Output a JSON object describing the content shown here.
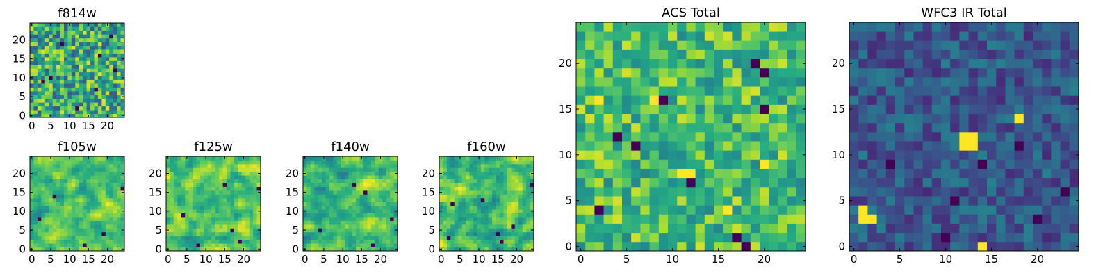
{
  "figure": {
    "background": "#ffffff"
  },
  "chart_data": [
    {
      "id": "f814w",
      "type": "heatmap",
      "title": "f814w",
      "grid_size": 25,
      "xlim": [
        0,
        24
      ],
      "ylim": [
        0,
        24
      ],
      "xticks": [
        0,
        5,
        10,
        15,
        20
      ],
      "yticks": [
        0,
        5,
        10,
        15,
        20
      ],
      "colormap": "viridis",
      "seed": 814,
      "bias": 0.62,
      "spread": 0.34,
      "smooth": 0,
      "dark_cells": [
        [
          5,
          10
        ],
        [
          21,
          21
        ],
        [
          18,
          16
        ],
        [
          3,
          9
        ],
        [
          12,
          2
        ],
        [
          8,
          19
        ],
        [
          17,
          7
        ],
        [
          22,
          12
        ]
      ],
      "bright_cells": [],
      "vmin": 0,
      "vmax": 1
    },
    {
      "id": "f105w",
      "type": "heatmap",
      "title": "f105w",
      "grid_size": 25,
      "xlim": [
        0,
        24
      ],
      "ylim": [
        0,
        24
      ],
      "xticks": [
        0,
        5,
        10,
        15,
        20
      ],
      "yticks": [
        0,
        5,
        10,
        15,
        20
      ],
      "colormap": "viridis",
      "seed": 105,
      "bias": 0.72,
      "spread": 0.22,
      "smooth": 1,
      "dark_cells": [
        [
          19,
          4
        ],
        [
          24,
          16
        ],
        [
          6,
          14
        ],
        [
          14,
          1
        ],
        [
          2,
          8
        ]
      ],
      "bright_cells": [],
      "vmin": 0,
      "vmax": 1
    },
    {
      "id": "f125w",
      "type": "heatmap",
      "title": "f125w",
      "grid_size": 25,
      "xlim": [
        0,
        24
      ],
      "ylim": [
        0,
        24
      ],
      "xticks": [
        0,
        5,
        10,
        15,
        20
      ],
      "yticks": [
        0,
        5,
        10,
        15,
        20
      ],
      "colormap": "viridis",
      "seed": 125,
      "bias": 0.74,
      "spread": 0.22,
      "smooth": 1,
      "dark_cells": [
        [
          15,
          17
        ],
        [
          24,
          16
        ],
        [
          17,
          5
        ],
        [
          19,
          2
        ],
        [
          4,
          9
        ],
        [
          8,
          1
        ]
      ],
      "bright_cells": [],
      "vmin": 0,
      "vmax": 1
    },
    {
      "id": "f140w",
      "type": "heatmap",
      "title": "f140w",
      "grid_size": 25,
      "xlim": [
        0,
        24
      ],
      "ylim": [
        0,
        24
      ],
      "xticks": [
        0,
        5,
        10,
        15,
        20
      ],
      "yticks": [
        0,
        5,
        10,
        15,
        20
      ],
      "colormap": "viridis",
      "seed": 140,
      "bias": 0.7,
      "spread": 0.22,
      "smooth": 1,
      "dark_cells": [
        [
          13,
          17
        ],
        [
          16,
          15
        ],
        [
          23,
          8
        ],
        [
          18,
          1
        ],
        [
          4,
          5
        ]
      ],
      "bright_cells": [],
      "vmin": 0,
      "vmax": 1
    },
    {
      "id": "f160w",
      "type": "heatmap",
      "title": "f160w",
      "grid_size": 25,
      "xlim": [
        0,
        24
      ],
      "ylim": [
        0,
        24
      ],
      "xticks": [
        0,
        5,
        10,
        15,
        20
      ],
      "yticks": [
        0,
        5,
        10,
        15,
        20
      ],
      "colormap": "viridis",
      "seed": 160,
      "bias": 0.7,
      "spread": 0.24,
      "smooth": 1,
      "dark_cells": [
        [
          11,
          13
        ],
        [
          3,
          12
        ],
        [
          24,
          17
        ],
        [
          15,
          4
        ],
        [
          16,
          2
        ],
        [
          19,
          6
        ],
        [
          2,
          3
        ]
      ],
      "bright_cells": [],
      "vmin": 0,
      "vmax": 1
    },
    {
      "id": "acs_total",
      "type": "heatmap",
      "title": "ACS Total",
      "grid_size": 25,
      "xlim": [
        0,
        24
      ],
      "ylim": [
        0,
        24
      ],
      "xticks": [
        0,
        5,
        10,
        15,
        20
      ],
      "yticks": [
        0,
        5,
        10,
        15,
        20
      ],
      "colormap": "viridis",
      "seed": 2011,
      "bias": 0.7,
      "spread": 0.24,
      "smooth": 0,
      "dark_cells": [
        [
          4,
          12
        ],
        [
          6,
          11
        ],
        [
          19,
          20
        ],
        [
          20,
          19
        ],
        [
          20,
          15
        ],
        [
          18,
          0
        ],
        [
          2,
          4
        ],
        [
          9,
          16
        ],
        [
          17,
          1
        ],
        [
          12,
          7
        ]
      ],
      "bright_cells": [
        [
          8,
          16
        ],
        [
          2,
          16
        ],
        [
          11,
          8
        ],
        [
          12,
          8
        ],
        [
          20,
          9
        ],
        [
          16,
          4
        ]
      ],
      "vmin": 0,
      "vmax": 1
    },
    {
      "id": "wfc3_ir_total",
      "type": "heatmap",
      "title": "WFC3 IR Total",
      "grid_size": 25,
      "xlim": [
        0,
        24
      ],
      "ylim": [
        0,
        24
      ],
      "xticks": [
        0,
        5,
        10,
        15,
        20
      ],
      "yticks": [
        0,
        5,
        10,
        15,
        20
      ],
      "colormap": "viridis",
      "seed": 3020,
      "bias": 0.28,
      "spread": 0.16,
      "smooth": 0,
      "dark_cells": [
        [
          11,
          5
        ],
        [
          4,
          9
        ],
        [
          14,
          9
        ],
        [
          18,
          11
        ],
        [
          20,
          3
        ],
        [
          23,
          6
        ],
        [
          10,
          1
        ]
      ],
      "bright_cells": [
        [
          12,
          11
        ],
        [
          13,
          11
        ],
        [
          12,
          12
        ],
        [
          13,
          12
        ],
        [
          1,
          3
        ],
        [
          2,
          3
        ],
        [
          1,
          4
        ],
        [
          14,
          0
        ],
        [
          18,
          14
        ]
      ],
      "vmin": 0,
      "vmax": 1
    }
  ]
}
